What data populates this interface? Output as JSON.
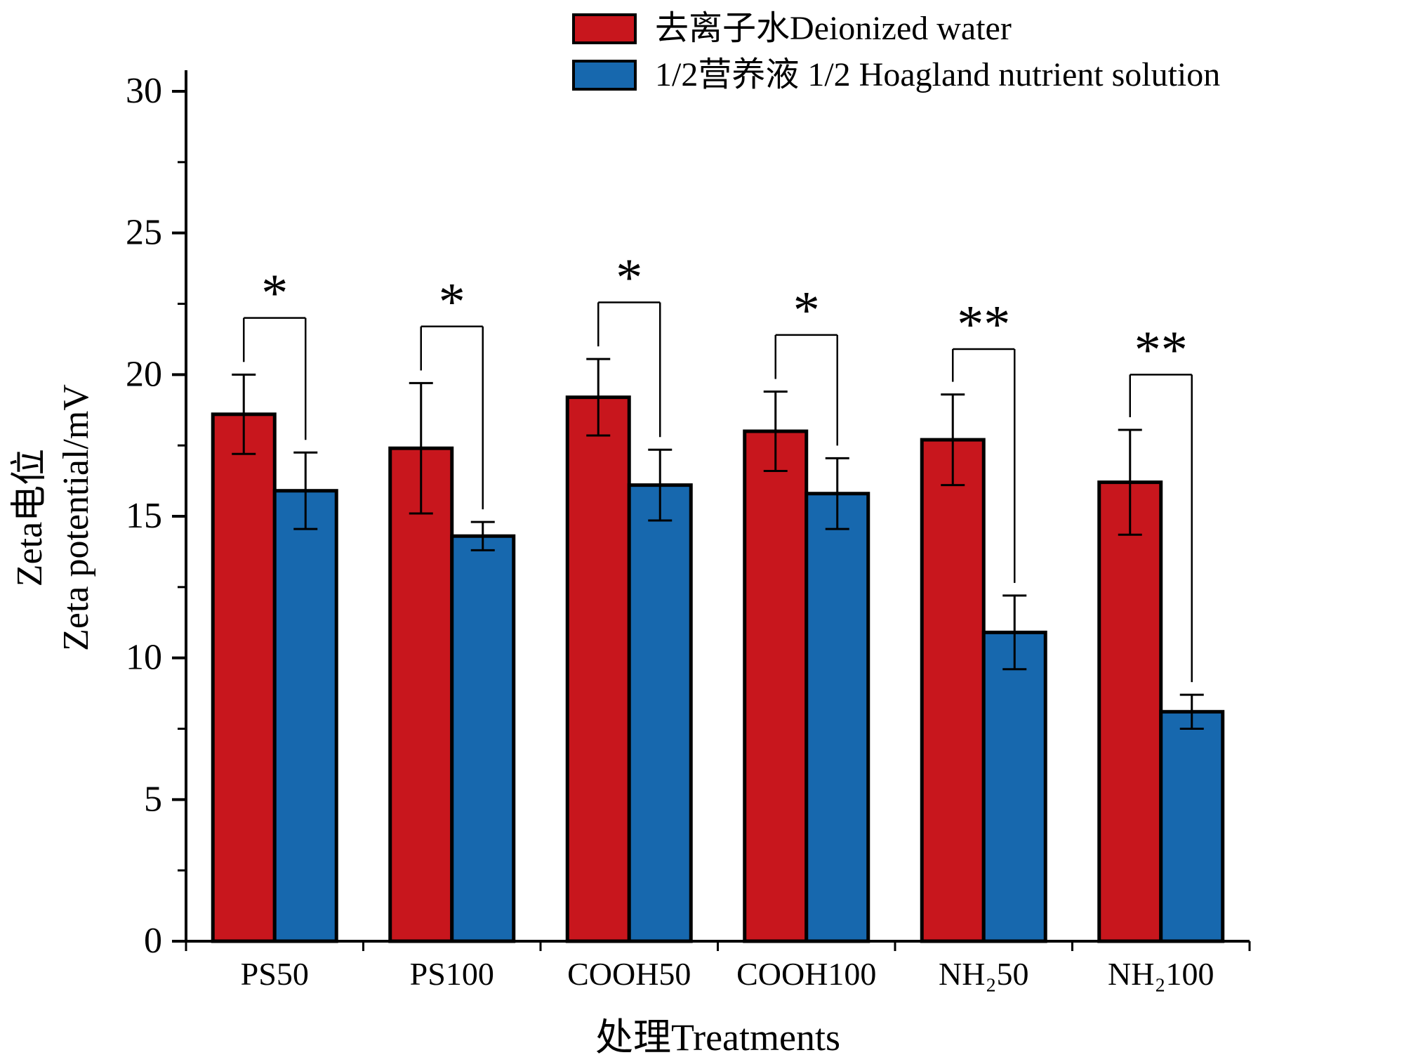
{
  "figure": {
    "background": "#ffffff"
  },
  "legend": {
    "items": [
      {
        "label": "去离子水Deionized water",
        "color": "#C8161D"
      },
      {
        "label": "1/2营养液  1/2 Hoagland nutrient solution",
        "color": "#1768AE"
      }
    ]
  },
  "axes": {
    "y_label_line1": "Zeta电位",
    "y_label_line2": "Zeta potential/mV",
    "x_label": "处理Treatments",
    "y_ticks": [
      0,
      5,
      10,
      15,
      20,
      25,
      30
    ],
    "y_minor_step": 2.5
  },
  "chart_data": {
    "type": "bar",
    "title": "",
    "xlabel": "处理Treatments",
    "ylabel": "Zeta电位 Zeta potential/mV",
    "ylim": [
      0,
      30
    ],
    "grid": false,
    "legend_position": "top",
    "categories": [
      "PS50",
      "PS100",
      "COOH50",
      "COOH100",
      "NH₂50",
      "NH₂100"
    ],
    "series": [
      {
        "name": "去离子水Deionized water",
        "color": "#C8161D",
        "values": [
          18.6,
          17.4,
          19.2,
          18.0,
          17.7,
          16.2
        ],
        "errors": [
          1.4,
          2.3,
          1.35,
          1.4,
          1.6,
          1.85
        ]
      },
      {
        "name": "1/2营养液 1/2 Hoagland nutrient solution",
        "color": "#1768AE",
        "values": [
          15.9,
          14.3,
          16.1,
          15.8,
          10.9,
          8.1
        ],
        "errors": [
          1.35,
          0.5,
          1.25,
          1.25,
          1.3,
          0.6
        ]
      }
    ],
    "significance": [
      {
        "marker": "*",
        "bracket_top": 22.0
      },
      {
        "marker": "*",
        "bracket_top": 21.7
      },
      {
        "marker": "*",
        "bracket_top": 22.55
      },
      {
        "marker": "*",
        "bracket_top": 21.4
      },
      {
        "marker": "**",
        "bracket_top": 20.9
      },
      {
        "marker": "**",
        "bracket_top": 20.0
      }
    ]
  }
}
